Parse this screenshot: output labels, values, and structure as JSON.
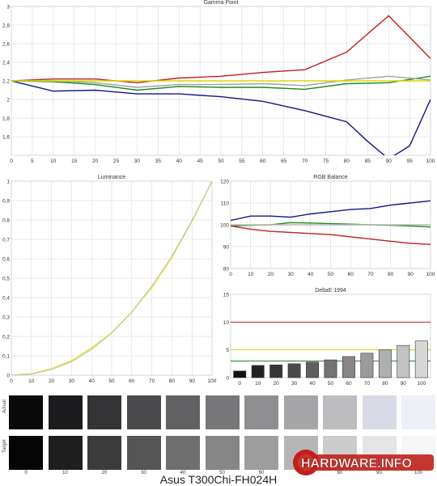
{
  "caption": "Asus T300Chi-FH024H",
  "watermark_text": "HARDWARE.INFO",
  "chart_data": [
    {
      "id": "gamma",
      "type": "line",
      "title": "Gamma Point",
      "xlim": [
        0,
        100
      ],
      "ylim": [
        1.4,
        3
      ],
      "x_ticks": [
        0,
        5,
        10,
        15,
        20,
        25,
        30,
        35,
        40,
        45,
        50,
        55,
        60,
        65,
        70,
        75,
        80,
        85,
        90,
        95,
        100
      ],
      "y_ticks": [
        1.6,
        1.8,
        2,
        2.2,
        2.4,
        2.6,
        2.8,
        3
      ],
      "y_tick_labels": [
        "1,6",
        "1,8",
        "2",
        "2,2",
        "2,4",
        "2,6",
        "2,8",
        "3"
      ],
      "grid": true,
      "series": [
        {
          "color": "#c0201a",
          "x": [
            0,
            10,
            20,
            30,
            40,
            50,
            60,
            70,
            80,
            90,
            100
          ],
          "values": [
            2.2,
            2.22,
            2.22,
            2.18,
            2.23,
            2.25,
            2.29,
            2.32,
            2.51,
            2.9,
            2.44
          ]
        },
        {
          "color": "#1a8a1a",
          "x": [
            0,
            10,
            20,
            30,
            40,
            50,
            60,
            70,
            80,
            90,
            100
          ],
          "values": [
            2.2,
            2.19,
            2.16,
            2.1,
            2.14,
            2.13,
            2.13,
            2.11,
            2.17,
            2.18,
            2.25
          ]
        },
        {
          "color": "#13138a",
          "x": [
            0,
            10,
            20,
            30,
            40,
            50,
            60,
            70,
            80,
            85,
            90,
            95,
            100
          ],
          "values": [
            2.2,
            2.09,
            2.1,
            2.06,
            2.06,
            2.03,
            1.98,
            1.88,
            1.76,
            1.55,
            1.36,
            1.5,
            2.0
          ]
        },
        {
          "color": "#a0a0a0",
          "x": [
            0,
            10,
            20,
            30,
            40,
            50,
            60,
            70,
            80,
            90,
            100
          ],
          "values": [
            2.2,
            2.2,
            2.18,
            2.13,
            2.16,
            2.16,
            2.17,
            2.15,
            2.21,
            2.25,
            2.21
          ]
        },
        {
          "color": "#d8d800",
          "x": [
            0,
            100
          ],
          "values": [
            2.2,
            2.2
          ]
        }
      ]
    },
    {
      "id": "luminance",
      "type": "line",
      "title": "Luminance",
      "xlim": [
        0,
        100
      ],
      "ylim": [
        0,
        1
      ],
      "x_ticks": [
        0,
        10,
        20,
        30,
        40,
        50,
        60,
        70,
        80,
        90,
        100
      ],
      "y_ticks": [
        0,
        0.1,
        0.2,
        0.3,
        0.4,
        0.5,
        0.6,
        0.7,
        0.8,
        0.9,
        1
      ],
      "y_tick_labels": [
        "0",
        "0,1",
        "0,2",
        "0,3",
        "0,4",
        "0,5",
        "0,6",
        "0,7",
        "0,8",
        "0,9",
        "1"
      ],
      "grid": true,
      "series": [
        {
          "color": "#f2ee4a",
          "x": [
            0,
            10,
            20,
            30,
            40,
            50,
            60,
            70,
            80,
            90,
            100
          ],
          "values": [
            0,
            0.008,
            0.034,
            0.076,
            0.142,
            0.22,
            0.326,
            0.45,
            0.606,
            0.792,
            1.0
          ]
        },
        {
          "color": "#c8c8a0",
          "x": [
            0,
            10,
            20,
            30,
            40,
            50,
            60,
            70,
            80,
            90,
            100
          ],
          "values": [
            0,
            0.006,
            0.03,
            0.07,
            0.134,
            0.218,
            0.325,
            0.458,
            0.612,
            0.796,
            1.0
          ]
        }
      ]
    },
    {
      "id": "rgb_balance",
      "type": "line",
      "title": "RGB Balance",
      "xlim": [
        0,
        100
      ],
      "ylim": [
        80,
        120
      ],
      "x_ticks": [
        0,
        10,
        20,
        30,
        40,
        50,
        60,
        70,
        80,
        90,
        100
      ],
      "y_ticks": [
        80,
        90,
        100,
        110,
        120
      ],
      "y_tick_labels": [
        "80",
        "90",
        "100",
        "110",
        "120"
      ],
      "grid": true,
      "series": [
        {
          "color": "#13138a",
          "x": [
            0,
            10,
            20,
            30,
            40,
            50,
            60,
            70,
            80,
            90,
            100
          ],
          "values": [
            102,
            104,
            104,
            103.5,
            105,
            106,
            107,
            107.5,
            109,
            110,
            111
          ]
        },
        {
          "color": "#1a8a1a",
          "x": [
            0,
            10,
            20,
            30,
            40,
            50,
            60,
            70,
            80,
            90,
            100
          ],
          "values": [
            99.5,
            99.8,
            100,
            101,
            100.8,
            100.5,
            100.3,
            100,
            99.8,
            99.5,
            99
          ]
        },
        {
          "color": "#c0201a",
          "x": [
            0,
            10,
            20,
            30,
            40,
            50,
            60,
            70,
            80,
            90,
            100
          ],
          "values": [
            99.5,
            98,
            97,
            96.5,
            96,
            95.5,
            94.5,
            93.5,
            92.5,
            91.5,
            91
          ]
        },
        {
          "color": "#b8b8b8",
          "x": [
            0,
            100
          ],
          "values": [
            100,
            100
          ]
        }
      ]
    },
    {
      "id": "deltae",
      "type": "bar",
      "title": "DeltaE 1994",
      "categories": [
        "0",
        "10",
        "20",
        "30",
        "40",
        "50",
        "60",
        "70",
        "80",
        "90",
        "100"
      ],
      "values": [
        1.2,
        2.2,
        2.3,
        2.5,
        2.8,
        3.2,
        3.8,
        4.4,
        5.0,
        5.8,
        6.6
      ],
      "ylim": [
        0,
        15
      ],
      "y_ticks": [
        0,
        5,
        10,
        15
      ],
      "y_tick_labels": [
        "0",
        "5",
        "10",
        "15"
      ],
      "bar_colors": [
        "#111111",
        "#232323",
        "#373737",
        "#4b4b4b",
        "#5f5f5f",
        "#737373",
        "#878787",
        "#9b9b9b",
        "#afafaf",
        "#c3c3c3",
        "#d7d7d7"
      ],
      "reference_lines": [
        {
          "value": 10,
          "color": "#c0201a"
        },
        {
          "value": 5,
          "color": "#d8d800"
        },
        {
          "value": 3,
          "color": "#1a8a1a"
        }
      ]
    }
  ],
  "swatches": {
    "actual_label": "Actual",
    "target_label": "Target",
    "x_labels": [
      "0",
      "10",
      "20",
      "30",
      "40",
      "50",
      "60",
      "70",
      "80",
      "90",
      "100"
    ],
    "actual": [
      "#0a0a0a",
      "#1b1b1d",
      "#343436",
      "#4a4a4c",
      "#626264",
      "#78787a",
      "#8e8e91",
      "#a5a5a8",
      "#bdbdc0",
      "#d8dae6",
      "#eef0f8"
    ],
    "target": [
      "#050505",
      "#1e1e1e",
      "#3b3b3b",
      "#555555",
      "#6e6e6e",
      "#868686",
      "#9d9d9d",
      "#b5b5b5",
      "#cccccc",
      "#e4e4e4",
      "#f6f6f6"
    ]
  }
}
